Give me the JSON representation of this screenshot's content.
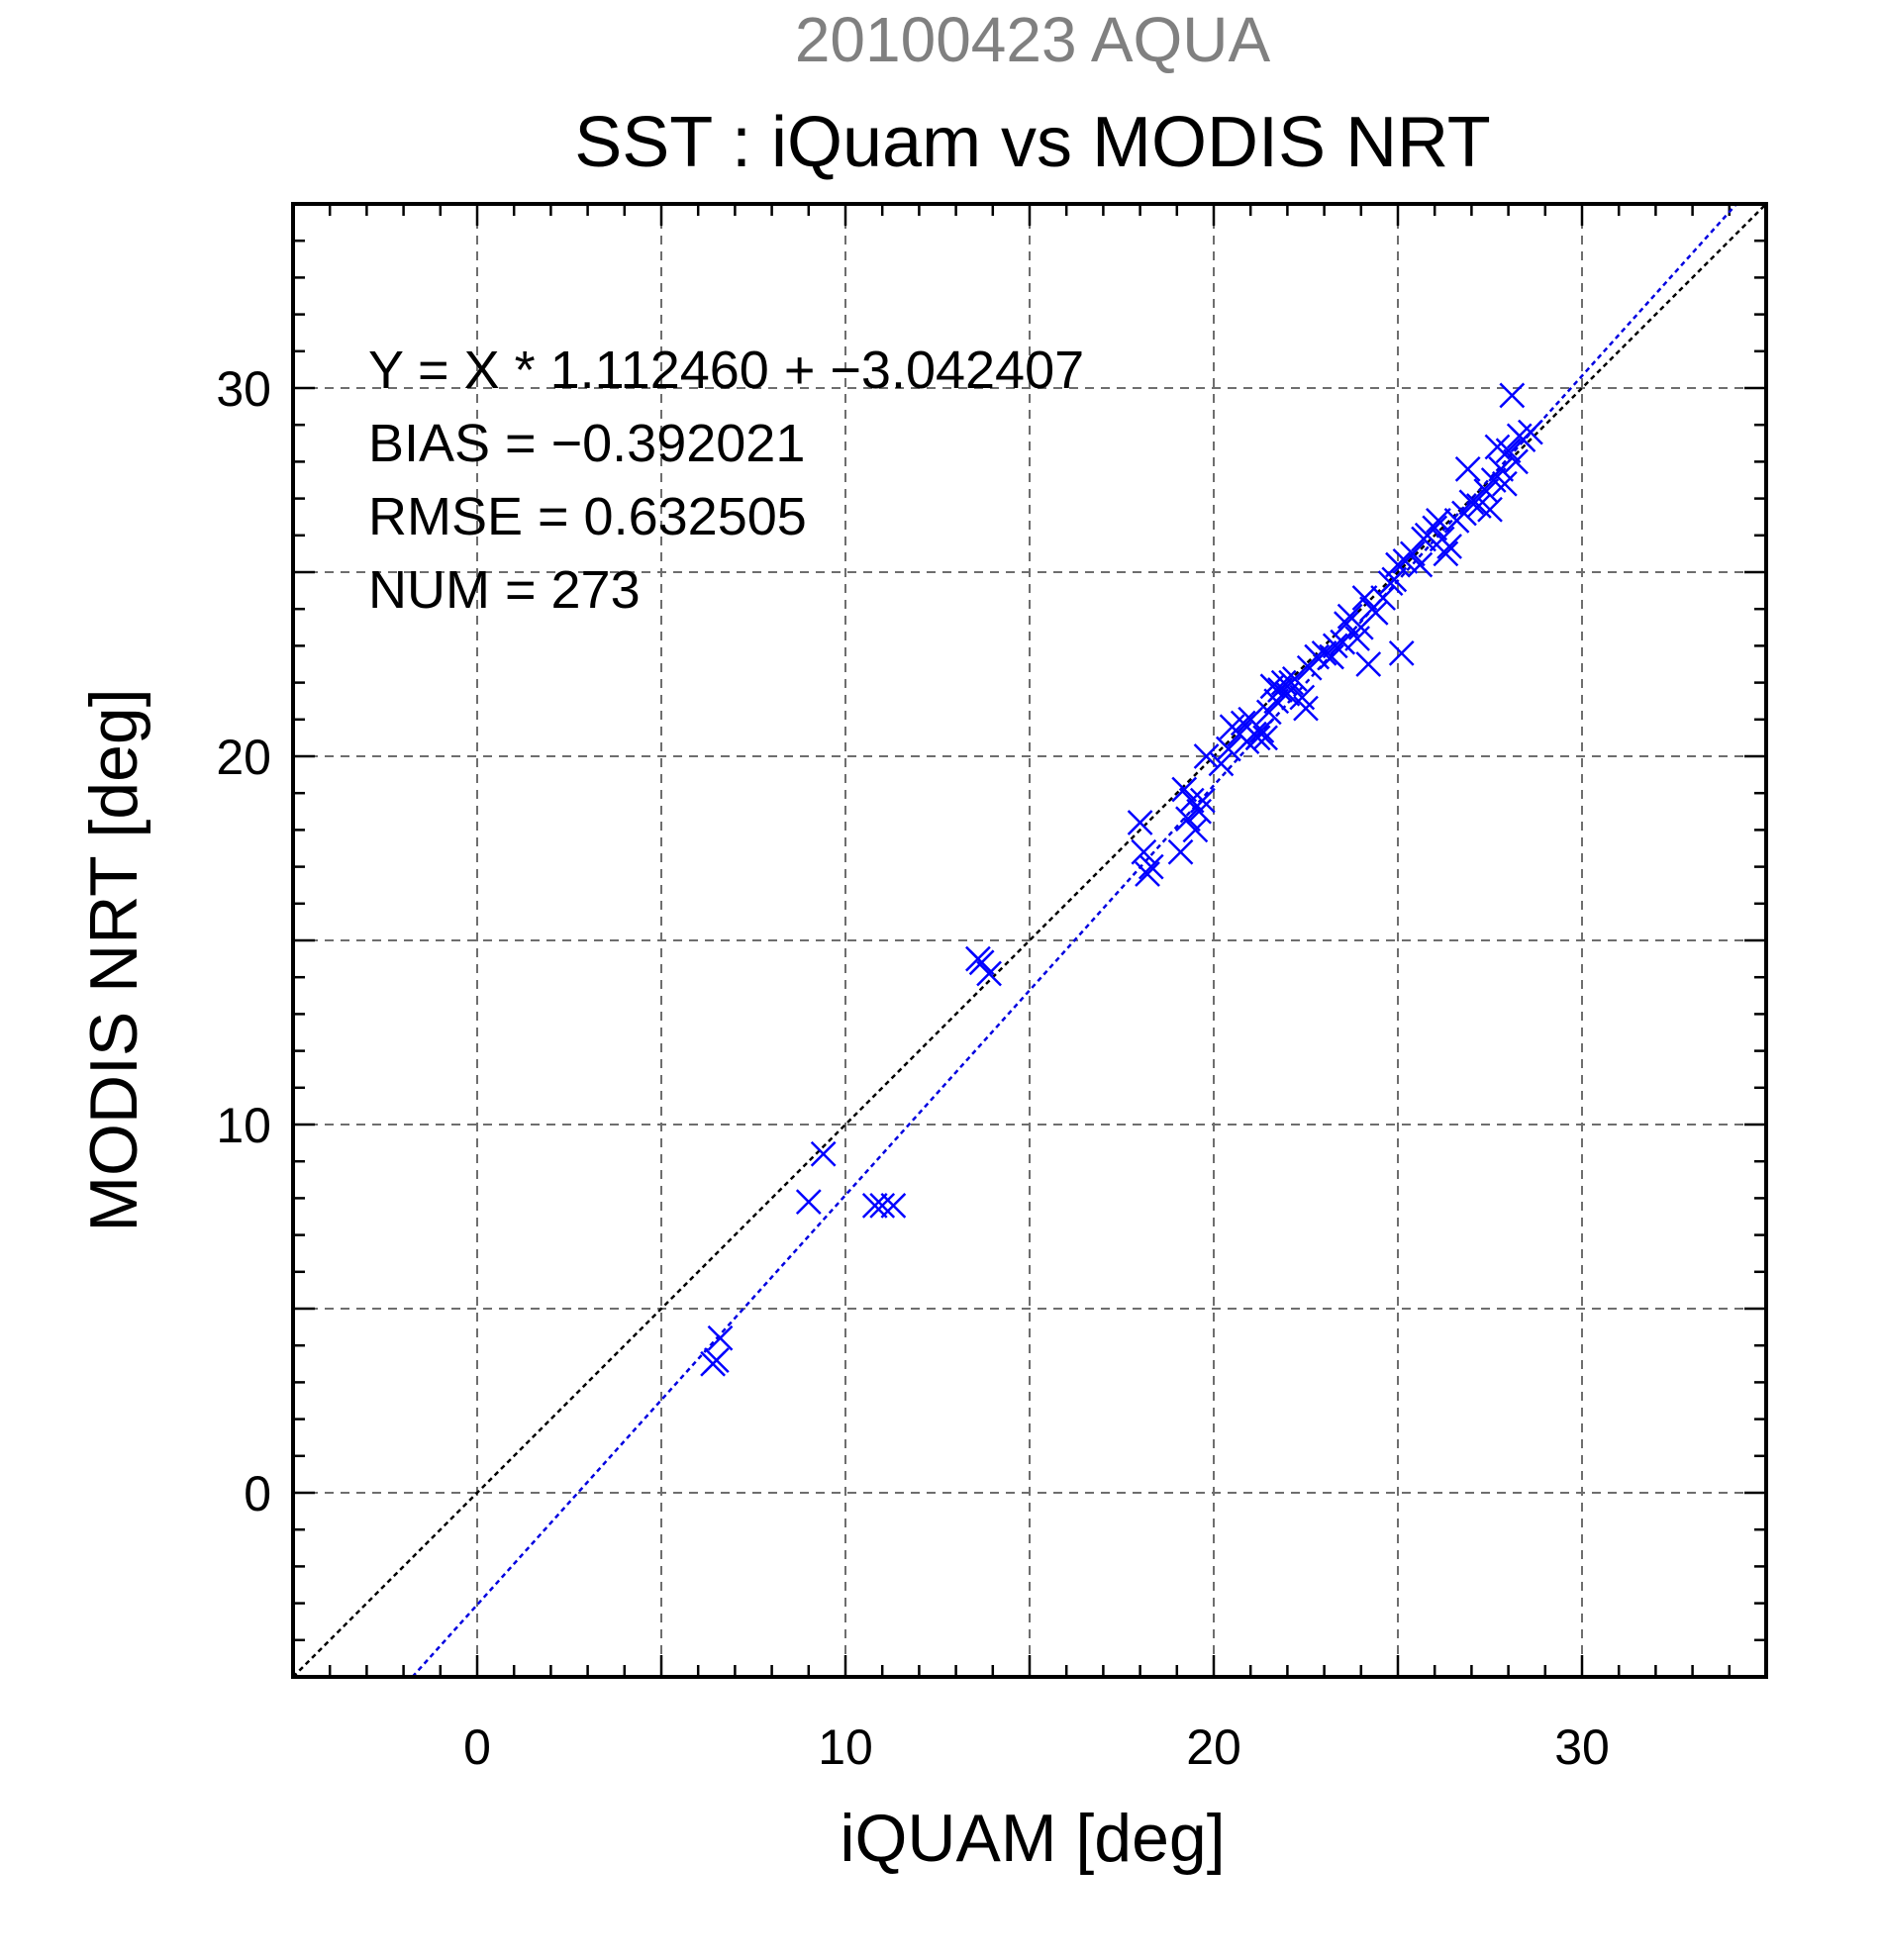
{
  "chart_data": {
    "type": "scatter",
    "supertitle": "20100423 AQUA",
    "title": "SST : iQuam vs MODIS NRT",
    "xlabel": "iQUAM [deg]",
    "ylabel": "MODIS NRT [deg]",
    "xlim": [
      -5,
      35
    ],
    "ylim": [
      -5,
      35
    ],
    "xticks": [
      0,
      10,
      20,
      30
    ],
    "yticks": [
      0,
      10,
      20,
      30
    ],
    "grid_step": 5,
    "grid": true,
    "annotations": [
      "Y = X * 1.112460 + −3.042407",
      "BIAS = −0.392021",
      "RMSE = 0.632505",
      "NUM = 273"
    ],
    "fit_line": {
      "slope": 1.11246,
      "intercept": -3.042407,
      "color": "#0000e0"
    },
    "reference_line": {
      "slope": 1,
      "intercept": 0,
      "color": "#000000"
    },
    "marker": "x",
    "marker_color": "#0000ff",
    "series": [
      {
        "x": [
          6.4,
          6.5,
          6.6,
          9.0,
          9.4,
          10.8,
          11.0,
          11.3,
          13.6,
          13.7,
          13.9,
          18.0,
          18.1,
          18.2,
          18.3,
          19.1,
          19.3,
          19.4,
          19.5,
          19.6,
          19.7,
          19.8,
          20.2,
          20.5,
          20.7,
          20.9,
          21.0,
          21.1,
          21.2,
          21.3,
          21.4,
          21.5,
          21.7,
          21.9,
          22.0,
          22.2,
          22.4,
          22.6,
          22.8,
          23.0,
          23.2,
          23.5,
          23.7,
          23.9,
          24.0,
          24.2,
          24.4,
          24.6,
          24.9,
          25.0,
          25.2,
          25.4,
          25.6,
          25.8,
          26.0,
          26.2,
          26.4,
          26.6,
          26.8,
          27.0,
          27.2,
          27.4,
          27.6,
          27.8,
          28.0,
          28.2,
          28.4,
          28.6,
          23.6,
          24.1,
          24.3,
          25.1,
          26.3,
          27.5,
          28.1,
          27.9,
          26.9,
          25.7,
          22.5,
          21.8,
          20.4,
          19.2,
          28.3,
          27.7,
          26.1,
          24.8,
          23.3,
          22.1,
          21.6,
          20.8
        ],
        "y": [
          3.5,
          3.6,
          4.2,
          7.9,
          9.2,
          7.8,
          7.8,
          7.8,
          14.5,
          14.4,
          14.1,
          18.2,
          17.4,
          16.8,
          17.0,
          17.4,
          18.3,
          18.8,
          18.0,
          18.5,
          18.8,
          20.0,
          19.8,
          20.8,
          20.6,
          20.4,
          21.0,
          20.6,
          20.5,
          20.7,
          20.5,
          21.2,
          21.5,
          22.0,
          21.7,
          22.1,
          21.6,
          22.4,
          22.7,
          22.8,
          22.7,
          23.1,
          23.8,
          23.2,
          23.5,
          22.5,
          23.9,
          24.3,
          24.8,
          25.2,
          25.3,
          25.5,
          25.2,
          26.0,
          26.2,
          25.9,
          25.7,
          26.4,
          26.6,
          26.9,
          26.8,
          27.2,
          27.5,
          27.8,
          28.3,
          28.0,
          28.6,
          28.8,
          23.6,
          24.3,
          24.0,
          22.8,
          25.5,
          26.7,
          29.8,
          27.4,
          27.8,
          25.9,
          21.3,
          21.8,
          20.2,
          19.1,
          28.7,
          28.4,
          26.4,
          24.7,
          23.0,
          22.0,
          21.9,
          20.9
        ]
      }
    ]
  }
}
